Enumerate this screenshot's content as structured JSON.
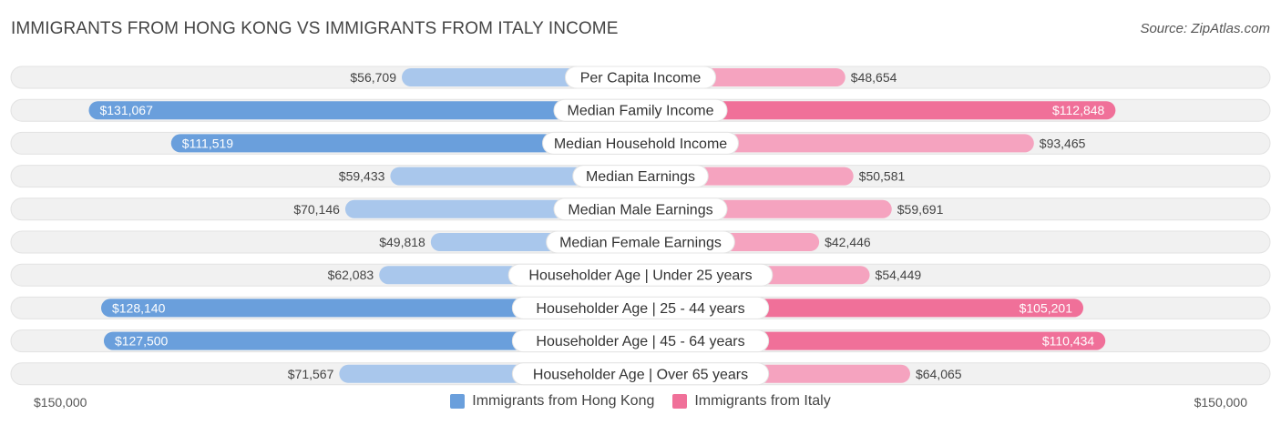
{
  "title": "IMMIGRANTS FROM HONG KONG VS IMMIGRANTS FROM ITALY INCOME",
  "source": "Source: ZipAtlas.com",
  "colors": {
    "hk_strong": "#6a9fdc",
    "hk_light": "#a9c7ec",
    "it_strong": "#f07099",
    "it_light": "#f5a3bf",
    "track": "#f1f1f1"
  },
  "axis": {
    "left_label": "$150,000",
    "right_label": "$150,000"
  },
  "chart_data": {
    "type": "bar",
    "orientation": "horizontal-diverging",
    "xlim": [
      0,
      150000
    ],
    "categories": [
      "Per Capita Income",
      "Median Family Income",
      "Median Household Income",
      "Median Earnings",
      "Median Male Earnings",
      "Median Female Earnings",
      "Householder Age | Under 25 years",
      "Householder Age | 25 - 44 years",
      "Householder Age | 45 - 64 years",
      "Householder Age | Over 65 years"
    ],
    "series": [
      {
        "name": "Immigrants from Hong Kong",
        "side": "left",
        "values": [
          56709,
          131067,
          111519,
          59433,
          70146,
          49818,
          62083,
          128140,
          127500,
          71567
        ],
        "labels": [
          "$56,709",
          "$131,067",
          "$111,519",
          "$59,433",
          "$70,146",
          "$49,818",
          "$62,083",
          "$128,140",
          "$127,500",
          "$71,567"
        ]
      },
      {
        "name": "Immigrants from Italy",
        "side": "right",
        "values": [
          48654,
          112848,
          93465,
          50581,
          59691,
          42446,
          54449,
          105201,
          110434,
          64065
        ],
        "labels": [
          "$48,654",
          "$112,848",
          "$93,465",
          "$50,581",
          "$59,691",
          "$42,446",
          "$54,449",
          "$105,201",
          "$110,434",
          "$64,065"
        ]
      }
    ],
    "legend_position": "bottom-center"
  }
}
